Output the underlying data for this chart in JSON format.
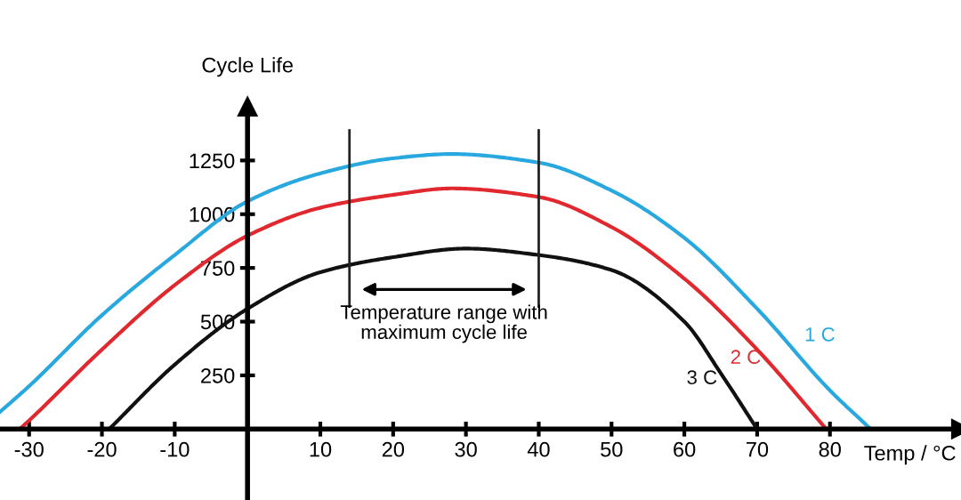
{
  "chart_data": {
    "type": "line",
    "ylabel": "Cycle Life",
    "xlabel": "Temp / °C",
    "series": [
      {
        "name": "1 C",
        "color": "#29a8df",
        "x": [
          -34,
          -30,
          -20,
          -10,
          0,
          10,
          20,
          28,
          40,
          50,
          60,
          70,
          80,
          85.6
        ],
        "values": [
          80,
          200,
          530,
          810,
          1060,
          1190,
          1260,
          1280,
          1240,
          1110,
          890,
          560,
          180,
          0
        ]
      },
      {
        "name": "2 C",
        "color": "#e0282e",
        "x": [
          -31.3,
          -30,
          -20,
          -10,
          0,
          10,
          20,
          28,
          40,
          50,
          60,
          70,
          79.5
        ],
        "values": [
          0,
          40,
          370,
          670,
          900,
          1030,
          1090,
          1120,
          1080,
          940,
          700,
          370,
          0
        ]
      },
      {
        "name": "3 C",
        "color": "#111111",
        "x": [
          -19,
          -10,
          0,
          10,
          20,
          30,
          40,
          50,
          60,
          65,
          70
        ],
        "values": [
          0,
          300,
          560,
          730,
          800,
          840,
          810,
          740,
          500,
          260,
          0
        ]
      }
    ],
    "xlim": [
      -34,
      98
    ],
    "ylim": [
      -330,
      1500
    ],
    "xticks": [
      -30,
      -20,
      -10,
      10,
      20,
      30,
      40,
      50,
      60,
      70,
      80
    ],
    "yticks": [
      250,
      500,
      750,
      1000,
      1250
    ],
    "ref_lines": [
      {
        "axis": "x",
        "value": 14,
        "color": "#222222"
      },
      {
        "axis": "x",
        "value": 40,
        "color": "#222222"
      }
    ],
    "annotations": [
      "Temperature range with\nmaximum cycle life"
    ],
    "grid": false,
    "legend": false,
    "marker": "none",
    "line_style": "solid"
  }
}
